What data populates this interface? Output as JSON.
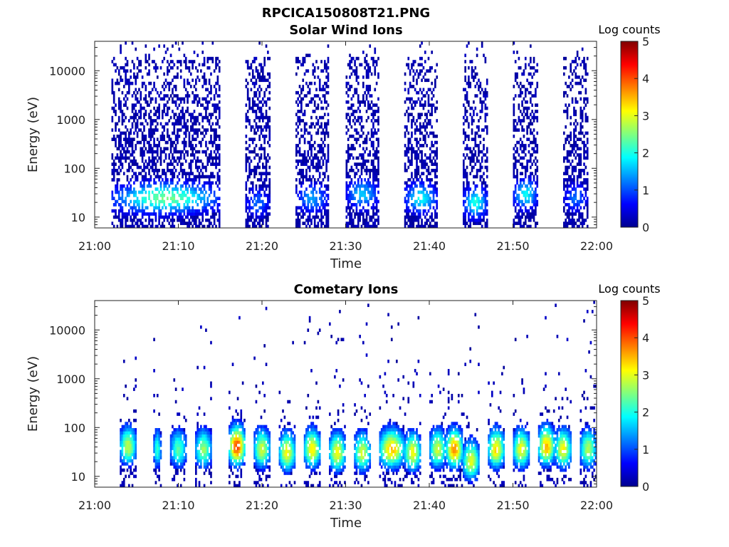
{
  "figure_title": "RPCICA150808T21.PNG",
  "chart_data": [
    {
      "type": "heatmap",
      "title": "Solar Wind Ions",
      "xlabel": "Time",
      "ylabel": "Energy (eV)",
      "x_ticks": [
        "21:00",
        "21:10",
        "21:20",
        "21:30",
        "21:40",
        "21:50",
        "22:00"
      ],
      "xlim": [
        "21:00",
        "22:00"
      ],
      "y_scale": "log",
      "y_ticks": [
        "10",
        "100",
        "1000",
        "10000"
      ],
      "ylim": [
        6,
        40000
      ],
      "colorbar": {
        "label": "Log counts",
        "ticks": [
          "0",
          "1",
          "2",
          "3",
          "4",
          "5"
        ],
        "range": [
          0,
          5
        ],
        "colormap": "jet"
      },
      "activity_bursts": [
        {
          "start": "21:02",
          "end": "21:15",
          "peak_energy_eV": 25,
          "peak_log_counts": 2.3
        },
        {
          "start": "21:18",
          "end": "21:21",
          "peak_energy_eV": 20,
          "peak_log_counts": 1.0
        },
        {
          "start": "21:24",
          "end": "21:28",
          "peak_energy_eV": 25,
          "peak_log_counts": 1.3
        },
        {
          "start": "21:30",
          "end": "21:34",
          "peak_energy_eV": 30,
          "peak_log_counts": 1.5
        },
        {
          "start": "21:37",
          "end": "21:41",
          "peak_energy_eV": 25,
          "peak_log_counts": 1.8
        },
        {
          "start": "21:44",
          "end": "21:47",
          "peak_energy_eV": 20,
          "peak_log_counts": 1.9
        },
        {
          "start": "21:50",
          "end": "21:53",
          "peak_energy_eV": 30,
          "peak_log_counts": 1.8
        },
        {
          "start": "21:56",
          "end": "21:59",
          "peak_energy_eV": 25,
          "peak_log_counts": 1.0
        }
      ]
    },
    {
      "type": "heatmap",
      "title": "Cometary Ions",
      "xlabel": "Time",
      "ylabel": "Energy (eV)",
      "x_ticks": [
        "21:00",
        "21:10",
        "21:20",
        "21:30",
        "21:40",
        "21:50",
        "22:00"
      ],
      "xlim": [
        "21:00",
        "22:00"
      ],
      "y_scale": "log",
      "y_ticks": [
        "10",
        "100",
        "1000",
        "10000"
      ],
      "ylim": [
        6,
        40000
      ],
      "colorbar": {
        "label": "Log counts",
        "ticks": [
          "0",
          "1",
          "2",
          "3",
          "4",
          "5"
        ],
        "range": [
          0,
          5
        ],
        "colormap": "jet"
      },
      "activity_bursts": [
        {
          "start": "21:03",
          "end": "21:05",
          "peak_energy_eV": 40,
          "peak_log_counts": 2.7
        },
        {
          "start": "21:07",
          "end": "21:08",
          "peak_energy_eV": 35,
          "peak_log_counts": 2.0
        },
        {
          "start": "21:09",
          "end": "21:11",
          "peak_energy_eV": 35,
          "peak_log_counts": 2.2
        },
        {
          "start": "21:12",
          "end": "21:14",
          "peak_energy_eV": 35,
          "peak_log_counts": 2.5
        },
        {
          "start": "21:16",
          "end": "21:18",
          "peak_energy_eV": 40,
          "peak_log_counts": 4.0
        },
        {
          "start": "21:19",
          "end": "21:21",
          "peak_energy_eV": 35,
          "peak_log_counts": 2.8
        },
        {
          "start": "21:22",
          "end": "21:24",
          "peak_energy_eV": 30,
          "peak_log_counts": 3.0
        },
        {
          "start": "21:25",
          "end": "21:27",
          "peak_energy_eV": 35,
          "peak_log_counts": 3.1
        },
        {
          "start": "21:28",
          "end": "21:30",
          "peak_energy_eV": 30,
          "peak_log_counts": 3.0
        },
        {
          "start": "21:31",
          "end": "21:33",
          "peak_energy_eV": 30,
          "peak_log_counts": 2.8
        },
        {
          "start": "21:34",
          "end": "21:37",
          "peak_energy_eV": 35,
          "peak_log_counts": 3.3
        },
        {
          "start": "21:37",
          "end": "21:39",
          "peak_energy_eV": 30,
          "peak_log_counts": 3.0
        },
        {
          "start": "21:40",
          "end": "21:42",
          "peak_energy_eV": 35,
          "peak_log_counts": 2.8
        },
        {
          "start": "21:42",
          "end": "21:44",
          "peak_energy_eV": 35,
          "peak_log_counts": 3.6
        },
        {
          "start": "21:44",
          "end": "21:46",
          "peak_energy_eV": 20,
          "peak_log_counts": 2.9
        },
        {
          "start": "21:47",
          "end": "21:49",
          "peak_energy_eV": 35,
          "peak_log_counts": 3.2
        },
        {
          "start": "21:50",
          "end": "21:52",
          "peak_energy_eV": 35,
          "peak_log_counts": 3.0
        },
        {
          "start": "21:53",
          "end": "21:55",
          "peak_energy_eV": 40,
          "peak_log_counts": 3.4
        },
        {
          "start": "21:55",
          "end": "21:57",
          "peak_energy_eV": 35,
          "peak_log_counts": 3.0
        },
        {
          "start": "21:58",
          "end": "22:00",
          "peak_energy_eV": 35,
          "peak_log_counts": 2.6
        }
      ]
    }
  ]
}
